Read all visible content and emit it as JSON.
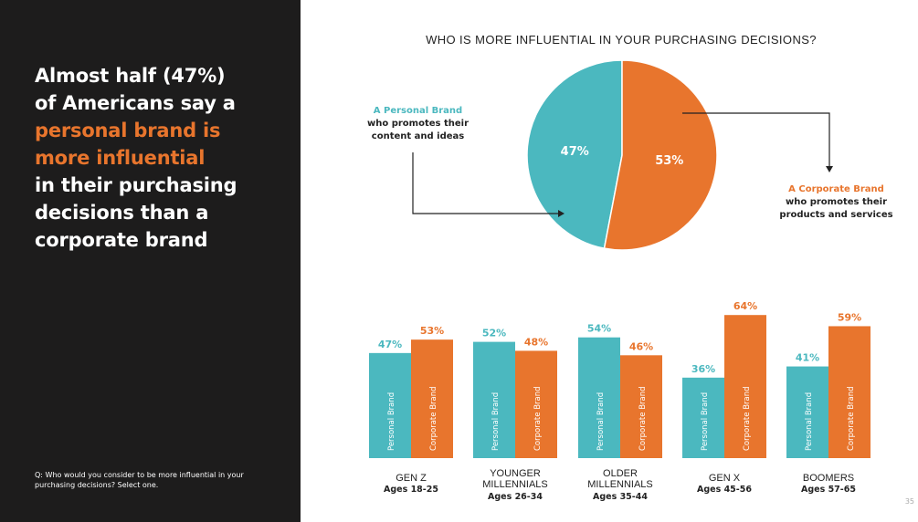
{
  "headline": {
    "lines": [
      {
        "text": "Almost half (47%)",
        "accent": false
      },
      {
        "text": "of Americans say a",
        "accent": false
      },
      {
        "text": "personal brand is",
        "accent": true
      },
      {
        "text": "more influential",
        "accent": true
      },
      {
        "text": "in their purchasing",
        "accent": false
      },
      {
        "text": "decisions than a",
        "accent": false
      },
      {
        "text": "corporate brand",
        "accent": false
      }
    ]
  },
  "footnote": {
    "lines": [
      "Q: Who would you consider to be more influential in your",
      "purchasing decisions? Select one."
    ]
  },
  "callouts": {
    "personal": {
      "heading": "A Personal Brand",
      "lines": [
        "who promotes their",
        "content and ideas"
      ]
    },
    "corporate": {
      "heading": "A Corporate Brand",
      "lines": [
        "who promotes their",
        "products and services"
      ]
    }
  },
  "page_number": "35",
  "colors": {
    "personal": "#4bb8bf",
    "corporate": "#e8752d",
    "panel": "#1d1c1c"
  },
  "chart_data": [
    {
      "type": "pie",
      "title": "WHO IS MORE INFLUENTIAL IN YOUR PURCHASING DECISIONS?",
      "slices": [
        {
          "name": "A Personal Brand",
          "value": 47,
          "label": "47%",
          "color": "#4bb8bf"
        },
        {
          "name": "A Corporate Brand",
          "value": 53,
          "label": "53%",
          "color": "#e8752d"
        }
      ]
    },
    {
      "type": "bar",
      "categories": [
        {
          "name_lines": [
            "GEN Z"
          ],
          "ages": "Ages 18-25"
        },
        {
          "name_lines": [
            "YOUNGER",
            "MILLENNIALS"
          ],
          "ages": "Ages 26-34"
        },
        {
          "name_lines": [
            "OLDER",
            "MILLENNIALS"
          ],
          "ages": "Ages 35-44"
        },
        {
          "name_lines": [
            "GEN X"
          ],
          "ages": "Ages 45-56"
        },
        {
          "name_lines": [
            "BOOMERS"
          ],
          "ages": "Ages 57-65"
        }
      ],
      "series": [
        {
          "name": "Personal Brand",
          "color": "#4bb8bf",
          "values": [
            47,
            52,
            54,
            36,
            41
          ],
          "labels": [
            "47%",
            "52%",
            "54%",
            "36%",
            "41%"
          ]
        },
        {
          "name": "Corporate Brand",
          "color": "#e8752d",
          "values": [
            53,
            48,
            46,
            64,
            59
          ],
          "labels": [
            "53%",
            "48%",
            "46%",
            "64%",
            "59%"
          ]
        }
      ],
      "ylim": [
        0,
        100
      ]
    }
  ]
}
